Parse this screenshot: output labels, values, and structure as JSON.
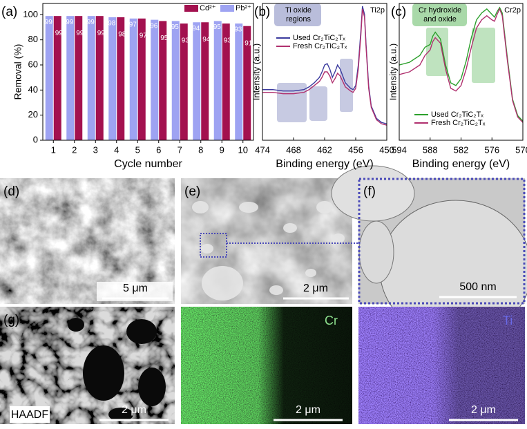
{
  "chart_data": [
    {
      "type": "bar",
      "panel_label": "(a)",
      "x_label": "Cycle number",
      "y_label": "Removal (%)",
      "categories": [
        "1",
        "2",
        "3",
        "4",
        "5",
        "6",
        "7",
        "8",
        "9",
        "10"
      ],
      "series": [
        {
          "name": "Cd²⁺",
          "color": "#a3114f",
          "values": [
            99,
            99,
            99,
            98,
            97,
            95,
            93,
            94,
            93,
            91
          ]
        },
        {
          "name": "Pb²⁺",
          "color": "#9ea3f2",
          "values": [
            99,
            99,
            99,
            98,
            97,
            96,
            95,
            94,
            95,
            93
          ]
        }
      ],
      "ylim": [
        0,
        109
      ],
      "yticks": [
        0,
        20,
        40,
        60,
        80,
        100
      ]
    },
    {
      "type": "line",
      "panel_label": "(b)",
      "core_level": "Ti2p",
      "annotation": [
        "Ti oxide",
        "regions"
      ],
      "x_label": "Binding energy (eV)",
      "y_label": "Intensity (a.u.)",
      "x": [
        474,
        472,
        470,
        468,
        466,
        465,
        464,
        463,
        462.5,
        462,
        461.5,
        461,
        460.5,
        460,
        459.5,
        459,
        458,
        457,
        456.5,
        456,
        455.5,
        455,
        454.7,
        454.3,
        454,
        453.5,
        453,
        452,
        451,
        450
      ],
      "series": [
        {
          "name": "Used Cr₂TiC₂Tₓ",
          "color": "#3b3b9e",
          "values": [
            37,
            37,
            36,
            36,
            37,
            39,
            42,
            46,
            50,
            55,
            56,
            52,
            46,
            50,
            55,
            52,
            42,
            38,
            37,
            40,
            55,
            80,
            98,
            92,
            70,
            40,
            25,
            16,
            13,
            12
          ]
        },
        {
          "name": "Fresh Cr₂TiC₂Tₓ",
          "color": "#b0306e",
          "values": [
            35,
            35,
            34,
            34,
            35,
            37,
            40,
            43,
            46,
            50,
            50,
            47,
            42,
            45,
            49,
            47,
            39,
            36,
            35,
            38,
            52,
            77,
            96,
            90,
            68,
            38,
            24,
            15,
            12,
            11
          ]
        }
      ],
      "xlim": [
        474,
        450
      ],
      "xticks": [
        474,
        468,
        462,
        456,
        450
      ],
      "ylim": [
        0,
        100
      ]
    },
    {
      "type": "line",
      "panel_label": "(c)",
      "core_level": "Cr2p",
      "annotation": [
        "Cr hydroxide",
        "and oxide"
      ],
      "x_label": "Binding energy (eV)",
      "y_label": "Intensity (a.u.)",
      "x": [
        594,
        592,
        590,
        589,
        588,
        587.5,
        587,
        586,
        585,
        584,
        583,
        582,
        581,
        580,
        579,
        578,
        577,
        576,
        575.5,
        575,
        574.5,
        574,
        573,
        572,
        571,
        570
      ],
      "series": [
        {
          "name": "Used Cr₂TiC₂Tₓ",
          "color": "#2ca02c",
          "values": [
            55,
            57,
            62,
            68,
            70,
            76,
            79,
            74,
            55,
            42,
            40,
            45,
            58,
            75,
            88,
            93,
            96,
            92,
            90,
            94,
            97,
            93,
            60,
            30,
            18,
            14
          ]
        },
        {
          "name": "Fresh Cr₂TiC₂Tₓ",
          "color": "#b0306e",
          "values": [
            48,
            50,
            55,
            62,
            66,
            72,
            75,
            71,
            52,
            38,
            36,
            40,
            52,
            68,
            82,
            88,
            91,
            88,
            87,
            92,
            96,
            91,
            58,
            29,
            17,
            13
          ]
        }
      ],
      "xlim": [
        594,
        570
      ],
      "xticks": [
        594,
        588,
        582,
        576,
        570
      ],
      "ylim": [
        0,
        100
      ]
    }
  ],
  "panels": {
    "d": {
      "label": "(d)",
      "scale_bar": "5 μm"
    },
    "e": {
      "label": "(e)",
      "scale_bar": "2 μm"
    },
    "f": {
      "label": "(f)",
      "scale_bar": "500 nm"
    },
    "g": {
      "label": "(g)",
      "detector": "HAADF",
      "scale_bar": "2 μm"
    },
    "cr": {
      "element": "Cr",
      "scale_bar": "2 μm"
    },
    "ti": {
      "element": "Ti",
      "scale_bar": "2 μm"
    }
  }
}
